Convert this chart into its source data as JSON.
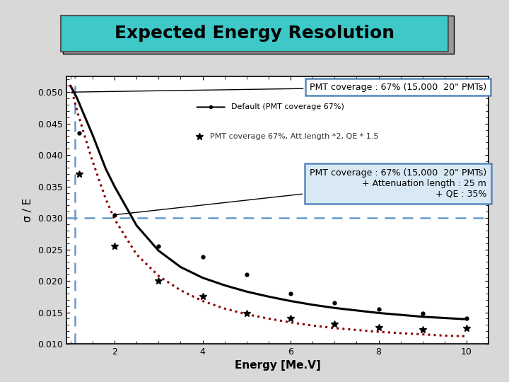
{
  "title": "Expected Energy Resolution",
  "title_bg": "#3EC8C8",
  "xlabel": "Energy [Me.V]",
  "ylabel": "σ / E",
  "xlim": [
    0.9,
    10.5
  ],
  "ylim": [
    0.01,
    0.0525
  ],
  "yticks": [
    0.01,
    0.015,
    0.02,
    0.025,
    0.03,
    0.035,
    0.04,
    0.045,
    0.05
  ],
  "xticks": [
    2,
    4,
    6,
    8,
    10
  ],
  "vline_x": 1.1,
  "hline_y": 0.03,
  "black_curve_x": [
    1.0,
    1.15,
    1.3,
    1.5,
    1.8,
    2.0,
    2.5,
    3.0,
    3.5,
    4.0,
    4.5,
    5.0,
    5.5,
    6.0,
    6.5,
    7.0,
    7.5,
    8.0,
    8.5,
    9.0,
    9.5,
    10.0
  ],
  "black_curve_y": [
    0.051,
    0.049,
    0.0465,
    0.0432,
    0.0378,
    0.035,
    0.0288,
    0.0248,
    0.0222,
    0.0205,
    0.0193,
    0.0183,
    0.0175,
    0.0168,
    0.0162,
    0.0157,
    0.0153,
    0.0149,
    0.0146,
    0.0143,
    0.0141,
    0.0139
  ],
  "black_dots_x": [
    1.2,
    2.0,
    3.0,
    4.0,
    5.0,
    6.0,
    7.0,
    8.0,
    9.0,
    10.0
  ],
  "black_dots_y": [
    0.0435,
    0.0305,
    0.0255,
    0.0238,
    0.021,
    0.018,
    0.0165,
    0.0155,
    0.0148,
    0.014
  ],
  "red_curve_x": [
    1.0,
    1.15,
    1.3,
    1.5,
    1.8,
    2.0,
    2.5,
    3.0,
    3.5,
    4.0,
    4.5,
    5.0,
    5.5,
    6.0,
    6.5,
    7.0,
    7.5,
    8.0,
    8.5,
    9.0,
    9.5,
    10.0
  ],
  "red_curve_y": [
    0.051,
    0.047,
    0.0435,
    0.039,
    0.033,
    0.0298,
    0.0242,
    0.0208,
    0.0185,
    0.0168,
    0.0156,
    0.0147,
    0.014,
    0.0134,
    0.0129,
    0.0125,
    0.0122,
    0.0119,
    0.0117,
    0.0115,
    0.0113,
    0.0112
  ],
  "red_stars_x": [
    1.2,
    2.0,
    3.0,
    4.0,
    5.0,
    6.0,
    7.0,
    8.0,
    9.0,
    10.0
  ],
  "red_stars_y": [
    0.037,
    0.0255,
    0.02,
    0.0175,
    0.0148,
    0.014,
    0.0132,
    0.0126,
    0.0122,
    0.0125
  ],
  "inner_legend_label1": "Default (PMT coverage 67%)",
  "inner_legend_label2": "PMT coverage 67%, Att.length *2, QE * 1.5",
  "box1_text": "PMT coverage : 67% (15,000  20\" PMTs)",
  "box2_line1": "PMT coverage : 67% (15,000  20\" PMTs)",
  "box2_line2": "+ Attenuation length : 25 m",
  "box2_line3": "+ QE : 35%",
  "fig_bg": "#d8d8d8",
  "plot_bg": "#ffffff",
  "panel_bg": "#f5f5f5"
}
